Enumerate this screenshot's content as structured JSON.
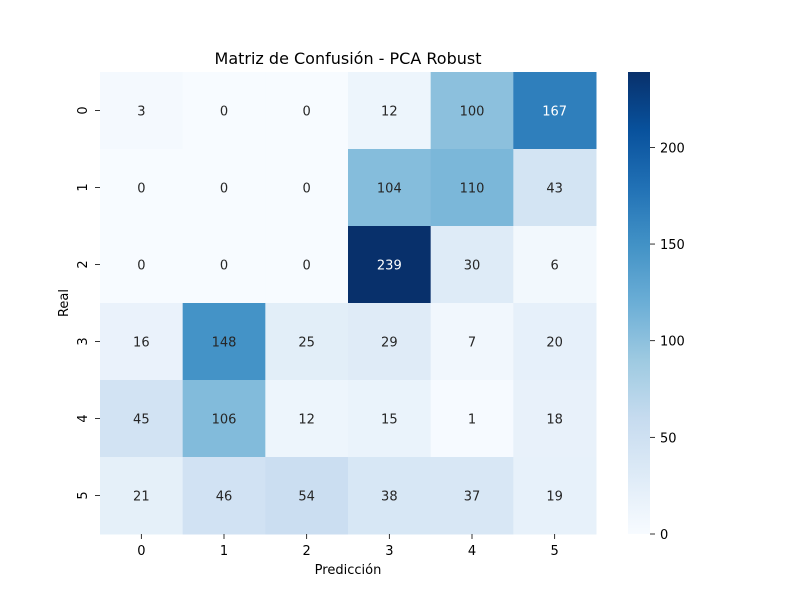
{
  "chart_data": {
    "type": "heatmap",
    "title": "Matriz de Confusión - PCA Robust",
    "xlabel": "Predicción",
    "ylabel": "Real",
    "x_categories": [
      "0",
      "1",
      "2",
      "3",
      "4",
      "5"
    ],
    "y_categories": [
      "0",
      "1",
      "2",
      "3",
      "4",
      "5"
    ],
    "values": [
      [
        3,
        0,
        0,
        12,
        100,
        167
      ],
      [
        0,
        0,
        0,
        104,
        110,
        43
      ],
      [
        0,
        0,
        0,
        239,
        30,
        6
      ],
      [
        16,
        148,
        25,
        29,
        7,
        20
      ],
      [
        45,
        106,
        12,
        15,
        1,
        18
      ],
      [
        21,
        46,
        54,
        38,
        37,
        19
      ]
    ],
    "colormap": "Blues",
    "vmin": 0,
    "vmax": 239,
    "colorbar": {
      "ticks": [
        0,
        50,
        100,
        150,
        200
      ]
    },
    "grid": false,
    "annotations": true
  }
}
